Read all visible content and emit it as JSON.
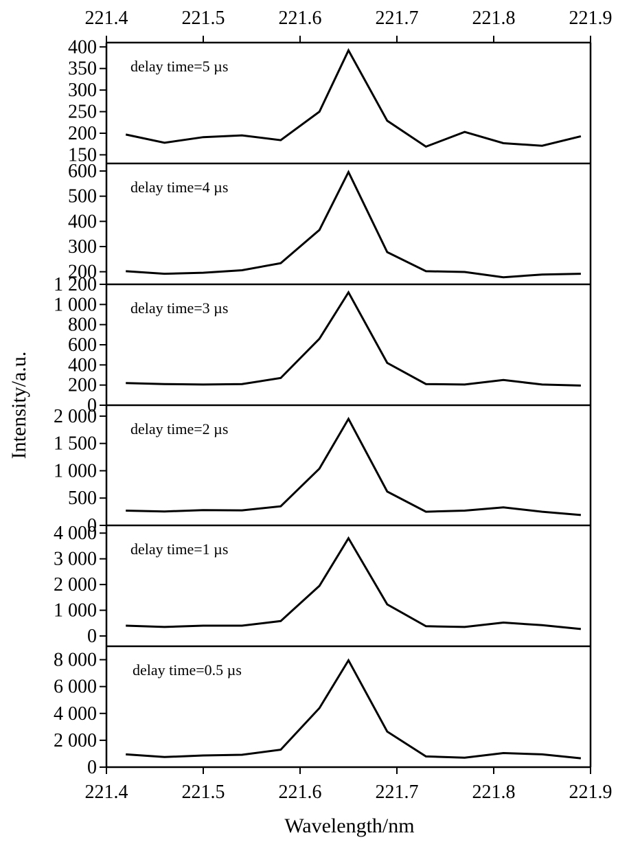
{
  "chart_data": [
    {
      "type": "line",
      "annotation": "delay time=5 µs",
      "x": [
        221.42,
        221.46,
        221.5,
        221.54,
        221.58,
        221.62,
        221.65,
        221.69,
        221.73,
        221.77,
        221.81,
        221.85,
        221.89
      ],
      "values": [
        197,
        178,
        191,
        195,
        184,
        250,
        392,
        229,
        169,
        203,
        177,
        171,
        193
      ],
      "ylim": [
        130,
        410
      ],
      "yticks": [
        150,
        200,
        250,
        300,
        350,
        400
      ],
      "ytick_labels": [
        "150",
        "200",
        "250",
        "300",
        "350",
        "400"
      ]
    },
    {
      "type": "line",
      "annotation": "delay time=4 µs",
      "x": [
        221.42,
        221.46,
        221.5,
        221.54,
        221.58,
        221.62,
        221.65,
        221.69,
        221.73,
        221.77,
        221.81,
        221.85,
        221.89
      ],
      "values": [
        202,
        192,
        196,
        206,
        234,
        366,
        596,
        278,
        202,
        199,
        178,
        189,
        192
      ],
      "ylim": [
        150,
        630
      ],
      "yticks": [
        200,
        300,
        400,
        500,
        600
      ],
      "ytick_labels": [
        "200",
        "300",
        "400",
        "500",
        "600"
      ]
    },
    {
      "type": "line",
      "annotation": "delay time=3 µs",
      "x": [
        221.42,
        221.46,
        221.5,
        221.54,
        221.58,
        221.62,
        221.65,
        221.69,
        221.73,
        221.77,
        221.81,
        221.85,
        221.89
      ],
      "values": [
        220,
        210,
        205,
        210,
        270,
        660,
        1120,
        420,
        210,
        205,
        250,
        205,
        195
      ],
      "ylim": [
        0,
        1200
      ],
      "yticks": [
        0,
        200,
        400,
        600,
        800,
        1000,
        1200
      ],
      "ytick_labels": [
        "0",
        "200",
        "400",
        "600",
        "800",
        "1 000",
        "1 200"
      ]
    },
    {
      "type": "line",
      "annotation": "delay time=2 µs",
      "x": [
        221.42,
        221.46,
        221.5,
        221.54,
        221.58,
        221.62,
        221.65,
        221.69,
        221.73,
        221.77,
        221.81,
        221.85,
        221.89
      ],
      "values": [
        270,
        255,
        280,
        275,
        350,
        1040,
        1950,
        620,
        250,
        270,
        330,
        250,
        190
      ],
      "ylim": [
        0,
        2200
      ],
      "yticks": [
        0,
        500,
        1000,
        1500,
        2000
      ],
      "ytick_labels": [
        "0",
        "500",
        "1 000",
        "1 500",
        "2 000"
      ]
    },
    {
      "type": "line",
      "annotation": "delay time=1 µs",
      "x": [
        221.42,
        221.46,
        221.5,
        221.54,
        221.58,
        221.62,
        221.65,
        221.69,
        221.73,
        221.77,
        221.81,
        221.85,
        221.89
      ],
      "values": [
        400,
        350,
        400,
        400,
        580,
        1950,
        3800,
        1230,
        380,
        350,
        520,
        420,
        270
      ],
      "ylim": [
        -400,
        4300
      ],
      "yticks": [
        0,
        1000,
        2000,
        3000,
        4000
      ],
      "ytick_labels": [
        "0",
        "1 000",
        "2 000",
        "3 000",
        "4 000"
      ]
    },
    {
      "type": "line",
      "annotation": "delay time=0.5 µs",
      "x": [
        221.42,
        221.46,
        221.5,
        221.54,
        221.58,
        221.62,
        221.65,
        221.69,
        221.73,
        221.77,
        221.81,
        221.85,
        221.89
      ],
      "values": [
        950,
        750,
        870,
        920,
        1300,
        4400,
        7950,
        2650,
        800,
        700,
        1050,
        950,
        660
      ],
      "ylim": [
        0,
        9000
      ],
      "yticks": [
        0,
        2000,
        4000,
        6000,
        8000
      ],
      "ytick_labels": [
        "0",
        "2 000",
        "4 000",
        "6 000",
        "8 000"
      ]
    }
  ],
  "axes": {
    "xlabel": "Wavelength/nm",
    "ylabel": "Intensity/a.u.",
    "xlim": [
      221.4,
      221.9
    ],
    "xticks": [
      221.4,
      221.5,
      221.6,
      221.7,
      221.8,
      221.9
    ],
    "xtick_labels": [
      "221.4",
      "221.5",
      "221.6",
      "221.7",
      "221.8",
      "221.9"
    ],
    "grid": false,
    "line_color": "#000000"
  }
}
